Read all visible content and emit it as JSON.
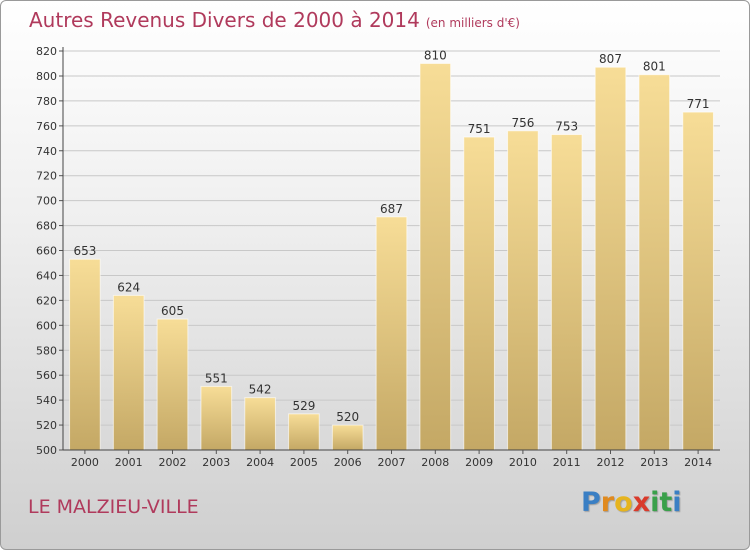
{
  "title": {
    "main": "Autres Revenus Divers de 2000 à 2014",
    "subtitle": "(en milliers d'€)"
  },
  "commune": "LE MALZIEU-VILLE",
  "brand": {
    "letters": [
      "P",
      "r",
      "o",
      "x",
      "i",
      "t",
      "i"
    ],
    "colors": [
      "#3a7fc4",
      "#e08a1e",
      "#e6b41e",
      "#d93a2b",
      "#3aa04a",
      "#3aa04a",
      "#3a7fc4"
    ]
  },
  "colors": {
    "title": "#b03a5c",
    "bar_light": "#f7dd97",
    "bar_dark": "#c4a865",
    "grid": "#c8c8c8"
  },
  "chart_data": {
    "type": "bar",
    "title": "Autres Revenus Divers de 2000 à 2014",
    "subtitle": "(en milliers d'€)",
    "categories": [
      "2000",
      "2001",
      "2002",
      "2003",
      "2004",
      "2005",
      "2006",
      "2007",
      "2008",
      "2009",
      "2010",
      "2011",
      "2012",
      "2013",
      "2014"
    ],
    "values": [
      653,
      624,
      605,
      551,
      542,
      529,
      520,
      687,
      810,
      751,
      756,
      753,
      807,
      801,
      771
    ],
    "ylim": [
      500,
      820
    ],
    "yticks": [
      500,
      520,
      540,
      560,
      580,
      600,
      620,
      640,
      660,
      680,
      700,
      720,
      740,
      760,
      780,
      800,
      820
    ],
    "grid": true,
    "legend": "none"
  }
}
